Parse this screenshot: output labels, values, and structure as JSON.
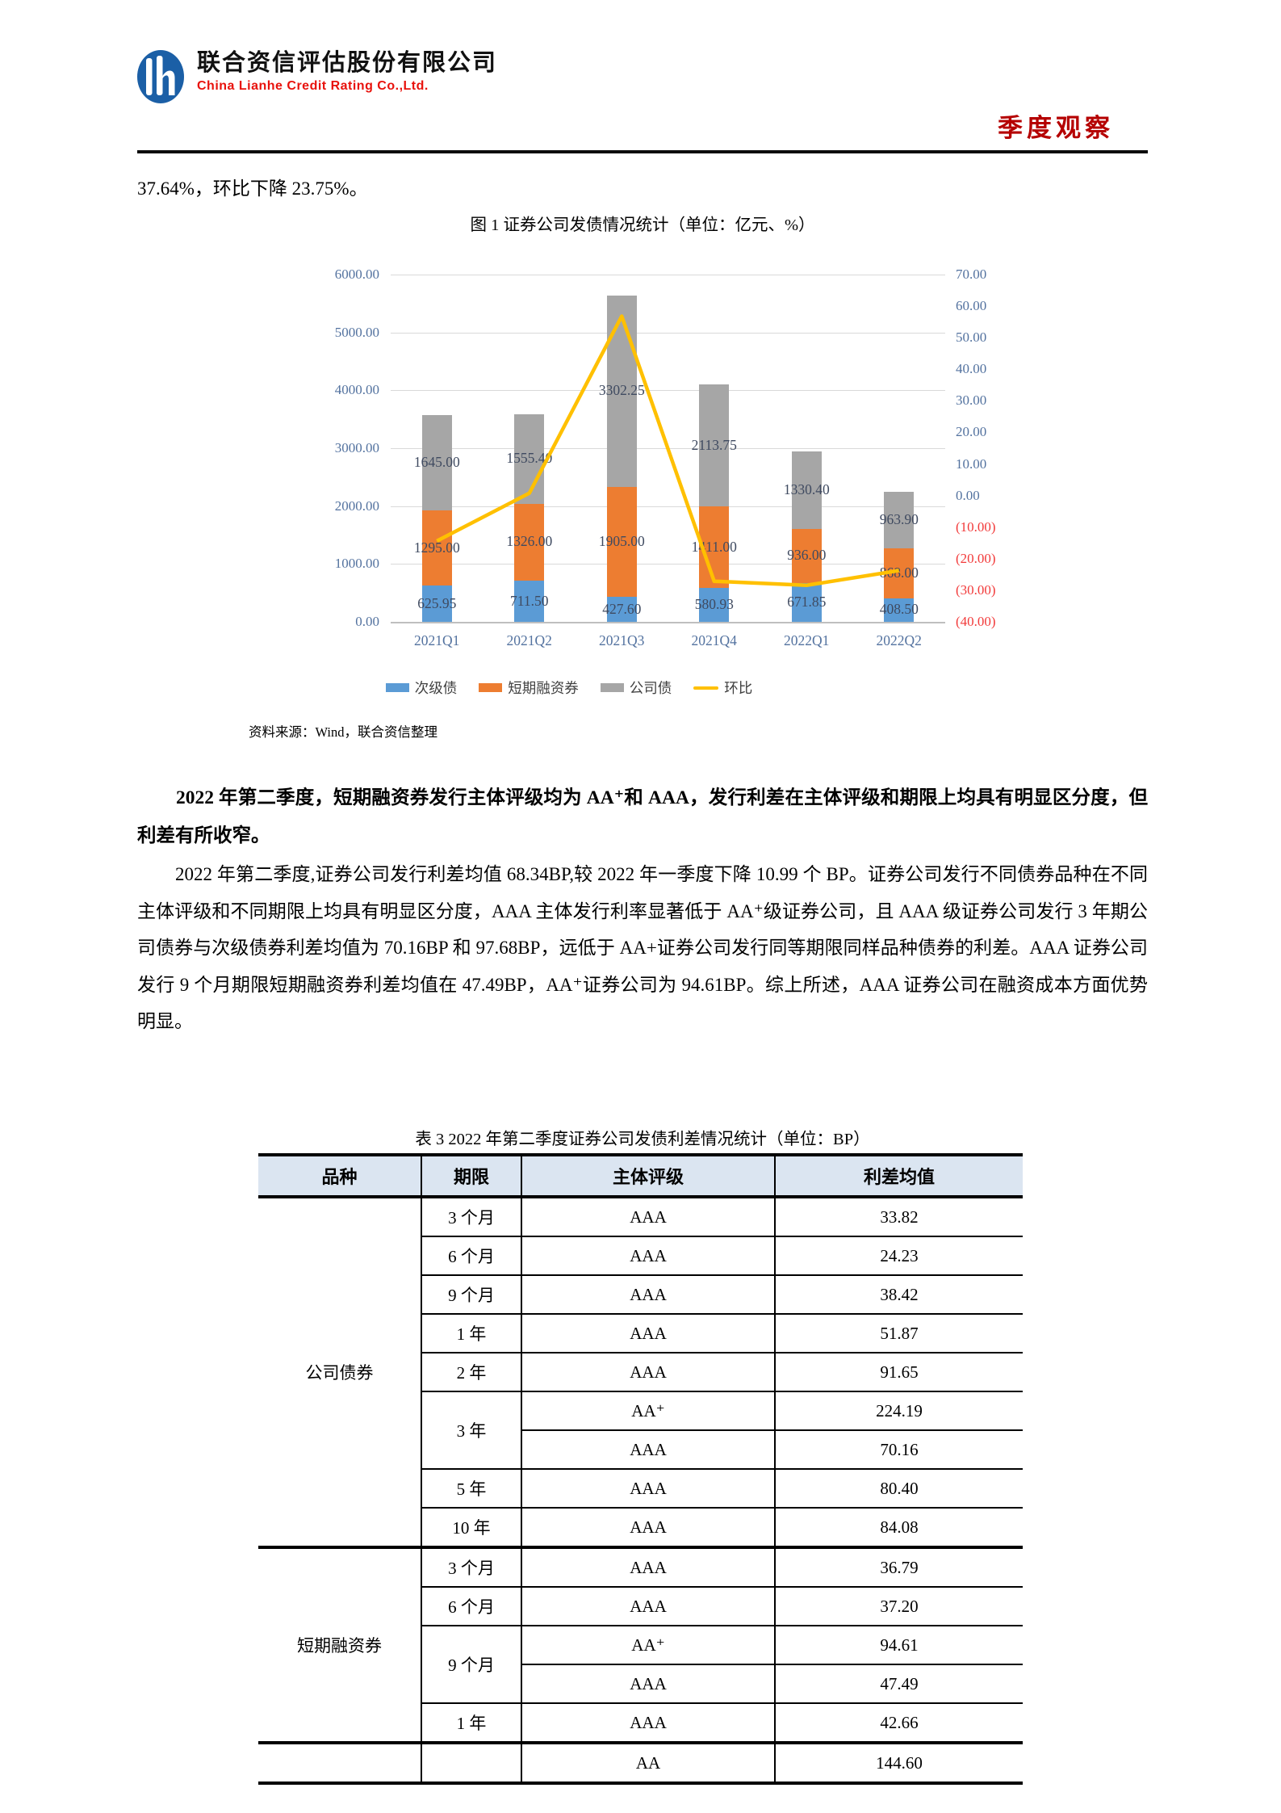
{
  "header": {
    "logo_cn": "联合资信评估股份有限公司",
    "logo_en": "China Lianhe Credit Rating Co.,Ltd.",
    "corner": "季度观察"
  },
  "intro": "37.64%，环比下降 23.75%。",
  "chart_data": {
    "type": "stacked-bar+line",
    "title": "图 1  证券公司发债情况统计（单位：亿元、%）",
    "categories": [
      "2021Q1",
      "2021Q2",
      "2021Q3",
      "2021Q4",
      "2022Q1",
      "2022Q2"
    ],
    "series": [
      {
        "name": "次级债",
        "color": "#5b9bd5",
        "values": [
          625.95,
          711.5,
          427.6,
          580.93,
          671.85,
          408.5
        ]
      },
      {
        "name": "短期融资券",
        "color": "#ed7d31",
        "values": [
          1295.0,
          1326.0,
          1905.0,
          1411.0,
          936.0,
          868.0
        ]
      },
      {
        "name": "公司债",
        "color": "#a6a6a6",
        "values": [
          1645.0,
          1555.4,
          3302.25,
          2113.75,
          1330.4,
          963.9
        ]
      }
    ],
    "line": {
      "name": "环比",
      "color": "#ffc000",
      "axis": "right",
      "values": [
        -14.4,
        0.76,
        56.83,
        -27.14,
        -28.43,
        -23.75
      ]
    },
    "left_axis": {
      "min": 0,
      "max": 6000,
      "step": 1000
    },
    "right_axis": {
      "min": -40,
      "max": 70,
      "step": 10,
      "negative_format": "parentheses-red"
    },
    "legend_position": "bottom",
    "grid": true
  },
  "source": "资料来源：Wind，联合资信整理",
  "para_bold": "2022 年第二季度，短期融资券发行主体评级均为 AA⁺和 AAA，发行利差在主体评级和期限上均具有明显区分度，但利差有所收窄。",
  "para_body": "2022 年第二季度,证券公司发行利差均值 68.34BP,较 2022 年一季度下降 10.99 个 BP。证券公司发行不同债券品种在不同主体评级和不同期限上均具有明显区分度，AAA 主体发行利率显著低于 AA⁺级证券公司，且 AAA 级证券公司发行 3 年期公司债券与次级债券利差均值为 70.16BP 和 97.68BP，远低于 AA+证券公司发行同等期限同样品种债券的利差。AAA 证券公司发行 9 个月期限短期融资券利差均值在 47.49BP，AA⁺证券公司为 94.61BP。综上所述，AAA 证券公司在融资成本方面优势明显。",
  "table": {
    "title": "表 3  2022 年第二季度证券公司发债利差情况统计（单位：BP）",
    "headers": [
      "品种",
      "期限",
      "主体评级",
      "利差均值"
    ],
    "rows": [
      {
        "variety": {
          "text": "公司债券",
          "span": 9
        },
        "tenor": {
          "text": "3 个月",
          "span": 1
        },
        "rating": "AAA",
        "spread": "33.82",
        "thick": true
      },
      {
        "tenor": {
          "text": "6 个月",
          "span": 1
        },
        "rating": "AAA",
        "spread": "24.23"
      },
      {
        "tenor": {
          "text": "9 个月",
          "span": 1
        },
        "rating": "AAA",
        "spread": "38.42"
      },
      {
        "tenor": {
          "text": "1 年",
          "span": 1
        },
        "rating": "AAA",
        "spread": "51.87"
      },
      {
        "tenor": {
          "text": "2 年",
          "span": 1
        },
        "rating": "AAA",
        "spread": "91.65"
      },
      {
        "tenor": {
          "text": "3 年",
          "span": 2
        },
        "rating": "AA⁺",
        "spread": "224.19"
      },
      {
        "rating": "AAA",
        "spread": "70.16"
      },
      {
        "tenor": {
          "text": "5 年",
          "span": 1
        },
        "rating": "AAA",
        "spread": "80.40"
      },
      {
        "tenor": {
          "text": "10 年",
          "span": 1
        },
        "rating": "AAA",
        "spread": "84.08"
      },
      {
        "variety": {
          "text": "短期融资券",
          "span": 5
        },
        "tenor": {
          "text": "3 个月",
          "span": 1
        },
        "rating": "AAA",
        "spread": "36.79",
        "thick": true
      },
      {
        "tenor": {
          "text": "6 个月",
          "span": 1
        },
        "rating": "AAA",
        "spread": "37.20"
      },
      {
        "tenor": {
          "text": "9 个月",
          "span": 2
        },
        "rating": "AA⁺",
        "spread": "94.61"
      },
      {
        "rating": "AAA",
        "spread": "47.49"
      },
      {
        "tenor": {
          "text": "1 年",
          "span": 1
        },
        "rating": "AAA",
        "spread": "42.66"
      },
      {
        "variety": {
          "text": "",
          "span": 1
        },
        "tenor": {
          "text": "",
          "span": 1
        },
        "rating": "AA",
        "spread": "144.60",
        "thick": true
      }
    ]
  }
}
